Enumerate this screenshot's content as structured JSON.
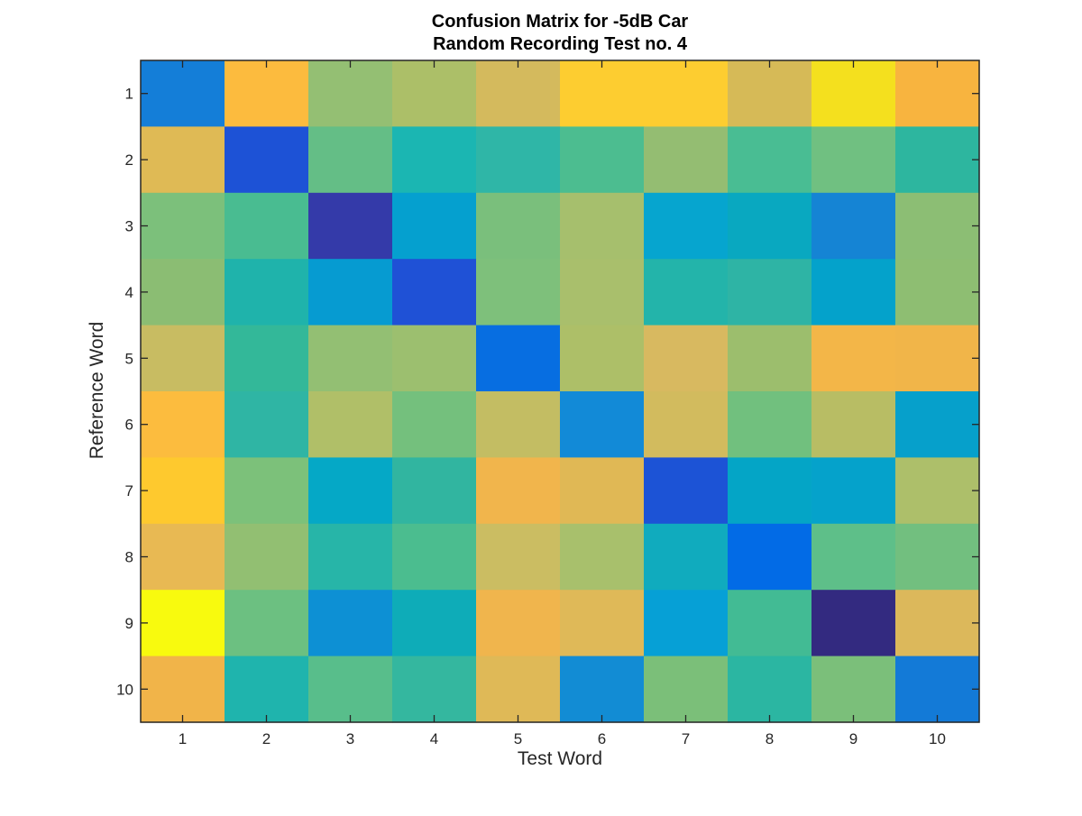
{
  "chart_data": {
    "type": "heatmap",
    "title_lines": [
      "Confusion Matrix for -5dB Car",
      "Random Recording Test no. 4"
    ],
    "xlabel": "Test Word",
    "ylabel": "Reference Word",
    "x_categories": [
      "1",
      "2",
      "3",
      "4",
      "5",
      "6",
      "7",
      "8",
      "9",
      "10"
    ],
    "y_categories": [
      "1",
      "2",
      "3",
      "4",
      "5",
      "6",
      "7",
      "8",
      "9",
      "10"
    ],
    "colormap": "parula",
    "cell_colors": [
      [
        "#147ed8",
        "#fcbb3e",
        "#94bf73",
        "#acbf68",
        "#d4ba5d",
        "#fdcd30",
        "#fdcd30",
        "#d6ba57",
        "#f4e01e",
        "#f8b43f"
      ],
      [
        "#dfba55",
        "#1d52d6",
        "#64be86",
        "#1bb6b2",
        "#2fb6a7",
        "#4cbd90",
        "#94bd72",
        "#49bd93",
        "#70c081",
        "#2db69f"
      ],
      [
        "#7cc07b",
        "#49bc91",
        "#343aa9",
        "#05a0cf",
        "#7abf7c",
        "#a6bf6d",
        "#06a5cf",
        "#09a8c0",
        "#1584d4",
        "#8cbe74"
      ],
      [
        "#8bbd73",
        "#1fb3ab",
        "#069bd1",
        "#1f51d6",
        "#7ec07b",
        "#a9bf6c",
        "#23b4aa",
        "#2eb4a5",
        "#04a2cb",
        "#8ebe72"
      ],
      [
        "#c8bc62",
        "#33b899",
        "#93bf73",
        "#9cbf6f",
        "#076ee1",
        "#adbf68",
        "#d8b960",
        "#9cbe6d",
        "#f3b648",
        "#f1b549"
      ],
      [
        "#fcbc3e",
        "#2fb5a4",
        "#b0bf68",
        "#74c07d",
        "#c3bd63",
        "#128ad7",
        "#d2bb5e",
        "#71c07e",
        "#b8bd64",
        "#06a0cb"
      ],
      [
        "#fec92e",
        "#7cc17a",
        "#05a8c6",
        "#31b5a0",
        "#f1b54c",
        "#e0b855",
        "#1c53d6",
        "#04a5c6",
        "#05a2cb",
        "#adbf6a"
      ],
      [
        "#e8b953",
        "#92bf72",
        "#27b5a8",
        "#4bbd8f",
        "#cbbd62",
        "#a8c06c",
        "#10abbe",
        "#026be6",
        "#5ebf89",
        "#72bf7f"
      ],
      [
        "#f8fa0e",
        "#6cc081",
        "#0d90d4",
        "#0eacb8",
        "#f0b54d",
        "#dfb958",
        "#06a0d6",
        "#42bb94",
        "#332a80",
        "#dcb85b"
      ],
      [
        "#f1b449",
        "#1fb4ad",
        "#58be8b",
        "#34b79f",
        "#dfb957",
        "#128cd4",
        "#7bbf79",
        "#2bb6a2",
        "#7bbf7a",
        "#137ad7"
      ]
    ],
    "grid": false
  }
}
